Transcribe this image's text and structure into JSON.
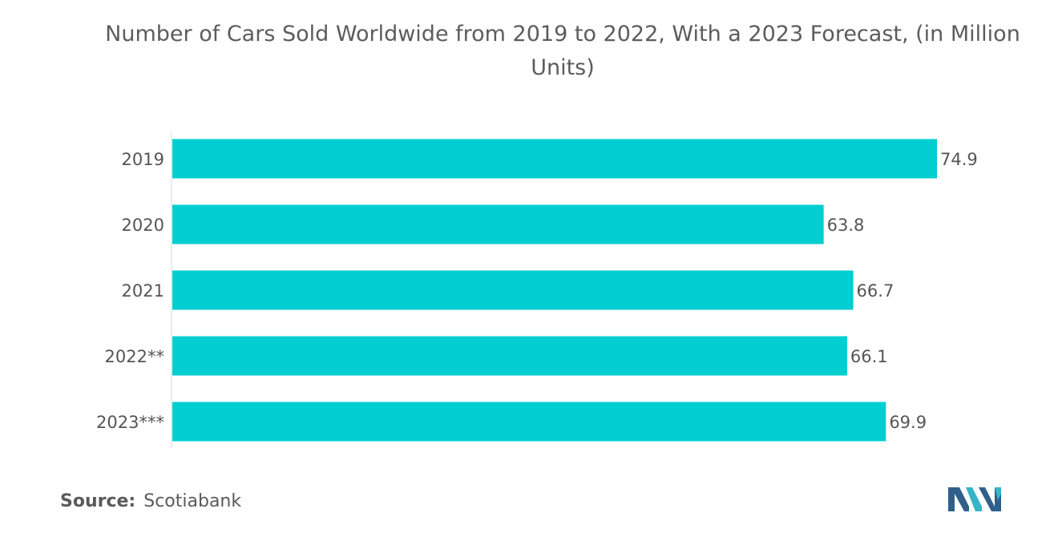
{
  "title": "Number of Cars Sold Worldwide from 2019 to 2022, With a 2023 Forecast, (in Million Units)",
  "source": {
    "label": "Source:",
    "value": "Scotiabank"
  },
  "colors": {
    "bar": "#00ced1",
    "text": "#555555"
  },
  "chart_data": {
    "type": "bar",
    "orientation": "horizontal",
    "title": "Number of Cars Sold Worldwide from 2019 to 2022, With a 2023 Forecast, (in Million Units)",
    "categories": [
      "2019",
      "2020",
      "2021",
      "2022**",
      "2023***"
    ],
    "values": [
      74.9,
      63.8,
      66.7,
      66.1,
      69.9
    ],
    "value_labels": [
      "74.9",
      "63.8",
      "66.7",
      "66.1",
      "69.9"
    ],
    "xlim": [
      0,
      74.9
    ],
    "xlabel": "",
    "ylabel": "",
    "grid": false,
    "legend": "none"
  }
}
